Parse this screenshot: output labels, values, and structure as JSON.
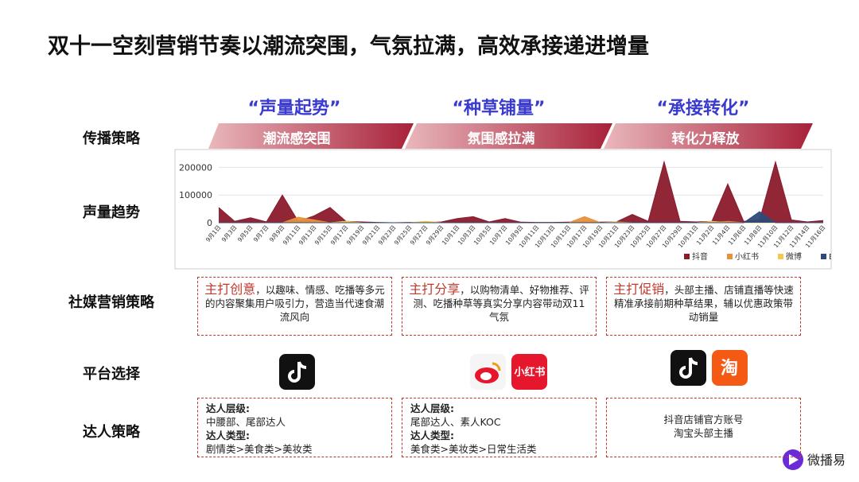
{
  "header": {
    "title": "双十一空刻营销节奏以潮流突围，气氛拉满，高效承接递进增量"
  },
  "rows": [
    "传播策略",
    "声量趋势",
    "社媒营销策略",
    "平台选择",
    "达人策略"
  ],
  "phases": [
    {
      "slogan": "“声量起势”",
      "banner": "潮流感突围",
      "highlight": "主打创意",
      "text": "，以趣味、情感、吃播等多元的内容聚集用户吸引力，营造当代速食潮流风向",
      "kol": [
        {
          "label": "达人层级:",
          "text": "中腰部、尾部达人"
        },
        {
          "label": "达人类型:",
          "text": "剧情类>美食类>美妆类"
        }
      ]
    },
    {
      "slogan": "“种草铺量”",
      "banner": "氛围感拉满",
      "highlight": "主打分享",
      "text": "，以购物清单、好物推荐、评测、吃播种草等真实分享内容带动双11气氛",
      "kol": [
        {
          "label": "达人层级:",
          "text": "尾部达人、素人KOC"
        },
        {
          "label": "达人类型:",
          "text": "美食类>美妆类>日常生活类"
        }
      ]
    },
    {
      "slogan": "“承接转化”",
      "banner": "转化力释放",
      "highlight": "主打促销",
      "text": "，头部主播、店铺直播等快速精准承接前期种草结果，辅以优惠政策带动销量",
      "kol": [
        {
          "text": "抖音店铺官方账号"
        },
        {
          "text": "淘宝头部主播"
        }
      ]
    }
  ],
  "platform_icons": [
    "小红书",
    "淘"
  ],
  "logo": "微播易",
  "chart_data": {
    "type": "area",
    "categories": [
      "9月1日",
      "9月3日",
      "9月5日",
      "9月7日",
      "9月9日",
      "9月11日",
      "9月13日",
      "9月15日",
      "9月17日",
      "9月19日",
      "9月21日",
      "9月23日",
      "9月25日",
      "9月27日",
      "9月29日",
      "10月1日",
      "10月3日",
      "10月5日",
      "10月7日",
      "10月9日",
      "10月11日",
      "10月13日",
      "10月15日",
      "10月17日",
      "10月19日",
      "10月21日",
      "10月23日",
      "10月25日",
      "10月27日",
      "10月29日",
      "10月31日",
      "11月2日",
      "11月4日",
      "11月6日",
      "11月8日",
      "11月10日",
      "11月12日",
      "11月14日",
      "11月16日"
    ],
    "series": [
      {
        "name": "抖音",
        "color": "#8b1a2b",
        "values": [
          55000,
          5000,
          18000,
          3000,
          100000,
          5000,
          25000,
          55000,
          5000,
          3000,
          1000,
          0,
          1000,
          0,
          3000,
          15000,
          22000,
          3000,
          15000,
          2000,
          1000,
          1000,
          2000,
          3000,
          2000,
          3000,
          30000,
          5000,
          220000,
          5000,
          3000,
          5000,
          140000,
          5000,
          10000,
          220000,
          10000,
          3000,
          8000
        ]
      },
      {
        "name": "小红书",
        "color": "#e8913a",
        "values": [
          0,
          0,
          0,
          0,
          0,
          20000,
          10000,
          0,
          5000,
          0,
          0,
          0,
          0,
          3000,
          0,
          0,
          0,
          0,
          0,
          0,
          0,
          0,
          0,
          22000,
          0,
          0,
          0,
          0,
          0,
          0,
          0,
          0,
          5000,
          0,
          0,
          0,
          0,
          0,
          0
        ]
      },
      {
        "name": "微博",
        "color": "#f2c94c",
        "values": [
          0,
          0,
          0,
          0,
          0,
          0,
          0,
          0,
          5000,
          0,
          0,
          0,
          0,
          5000,
          0,
          0,
          0,
          0,
          0,
          0,
          0,
          0,
          0,
          0,
          0,
          3000,
          0,
          0,
          0,
          0,
          0,
          5000,
          0,
          0,
          0,
          0,
          0,
          0,
          0
        ]
      },
      {
        "name": "B站",
        "color": "#2e4a7a",
        "values": [
          0,
          0,
          0,
          0,
          0,
          0,
          0,
          0,
          0,
          0,
          0,
          0,
          0,
          0,
          0,
          0,
          0,
          0,
          0,
          0,
          0,
          0,
          0,
          0,
          0,
          0,
          0,
          0,
          0,
          0,
          0,
          0,
          0,
          0,
          40000,
          0,
          0,
          0,
          0
        ]
      }
    ],
    "ylim": [
      0,
      230000
    ],
    "yticks": [
      0,
      100000,
      200000
    ],
    "grid": true,
    "legend": "bottom-right"
  }
}
